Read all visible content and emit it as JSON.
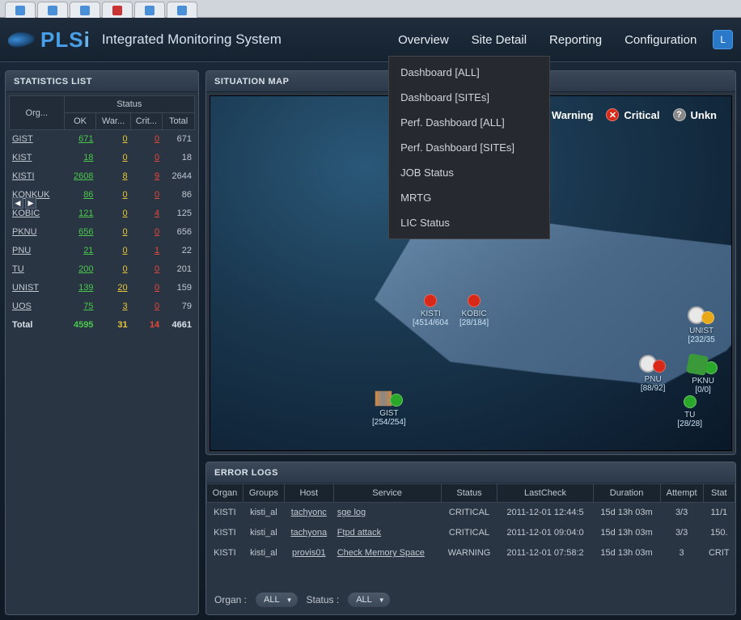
{
  "browser_tabs": [
    "",
    "",
    "",
    "",
    "",
    ""
  ],
  "logo": {
    "brand": "PLS",
    "brand2": "i",
    "sub": "Integrated Monitoring System"
  },
  "nav": {
    "overview": "Overview",
    "site_detail": "Site Detail",
    "reporting": "Reporting",
    "configuration": "Configuration",
    "login": "L"
  },
  "dropdown": [
    "Dashboard [ALL]",
    "Dashboard [SITEs]",
    "Perf. Dashboard [ALL]",
    "Perf. Dashboard [SITEs]",
    "JOB Status",
    "MRTG",
    "LIC Status"
  ],
  "stats": {
    "title": "STATISTICS LIST",
    "header_org": "Org...",
    "header_status": "Status",
    "cols": {
      "ok": "OK",
      "war": "War...",
      "crit": "Crit...",
      "total": "Total"
    },
    "rows": [
      {
        "org": "GIST",
        "ok": "671",
        "war": "0",
        "crit": "0",
        "total": "671"
      },
      {
        "org": "KIST",
        "ok": "18",
        "war": "0",
        "crit": "0",
        "total": "18"
      },
      {
        "org": "KISTI",
        "ok": "2608",
        "war": "8",
        "crit": "9",
        "total": "2644"
      },
      {
        "org": "KONKUK",
        "ok": "86",
        "war": "0",
        "crit": "0",
        "total": "86"
      },
      {
        "org": "KOBIC",
        "ok": "121",
        "war": "0",
        "crit": "4",
        "total": "125"
      },
      {
        "org": "PKNU",
        "ok": "656",
        "war": "0",
        "crit": "0",
        "total": "656"
      },
      {
        "org": "PNU",
        "ok": "21",
        "war": "0",
        "crit": "1",
        "total": "22"
      },
      {
        "org": "TU",
        "ok": "200",
        "war": "0",
        "crit": "0",
        "total": "201"
      },
      {
        "org": "UNIST",
        "ok": "139",
        "war": "20",
        "crit": "0",
        "total": "159"
      },
      {
        "org": "UOS",
        "ok": "75",
        "war": "3",
        "crit": "0",
        "total": "79"
      }
    ],
    "total_row": {
      "label": "Total",
      "ok": "4595",
      "war": "31",
      "crit": "14",
      "total": "4661"
    }
  },
  "map": {
    "title": "SITUATION MAP",
    "legend": {
      "warning": "Warning",
      "critical": "Critical",
      "unknown": "Unkn"
    },
    "nodes": {
      "kisti": {
        "label": "KISTI",
        "stat": "[4514/604"
      },
      "kobic": {
        "label": "KOBIC",
        "stat": "[28/184]"
      },
      "gist": {
        "label": "GIST",
        "stat": "[254/254]"
      },
      "unist": {
        "label": "UNIST",
        "stat": "[232/35"
      },
      "pnu": {
        "label": "PNU",
        "stat": "[88/92]"
      },
      "pknu": {
        "label": "PKNU",
        "stat": "[0/0]"
      },
      "tu": {
        "label": "TU",
        "stat": "[28/28]"
      }
    }
  },
  "errors": {
    "title": "ERROR LOGS",
    "cols": {
      "organ": "Organ",
      "groups": "Groups",
      "host": "Host",
      "service": "Service",
      "status": "Status",
      "lastcheck": "LastCheck",
      "duration": "Duration",
      "attempt": "Attempt",
      "stat2": "Stat"
    },
    "rows": [
      {
        "organ": "KISTI",
        "groups": "kisti_al",
        "host": "tachyonc",
        "service": "sge log",
        "status": "CRITICAL",
        "statcls": "crit",
        "lastcheck": "2011-12-01 12:44:5",
        "duration": "15d 13h 03m",
        "attempt": "3/3",
        "s2": "11/1"
      },
      {
        "organ": "KISTI",
        "groups": "kisti_al",
        "host": "tachyona",
        "service": "Ftpd attack",
        "status": "CRITICAL",
        "statcls": "crit",
        "lastcheck": "2011-12-01 09:04:0",
        "duration": "15d 13h 03m",
        "attempt": "3/3",
        "s2": "150."
      },
      {
        "organ": "KISTI",
        "groups": "kisti_al",
        "host": "provis01",
        "service": "Check Memory Space",
        "status": "WARNING",
        "statcls": "warn",
        "lastcheck": "2011-12-01 07:58:2",
        "duration": "15d 13h 03m",
        "attempt": "3",
        "s2": "CRIT"
      }
    ],
    "filter": {
      "organ_label": "Organ :",
      "organ_val": "ALL",
      "status_label": "Status :",
      "status_val": "ALL"
    }
  }
}
